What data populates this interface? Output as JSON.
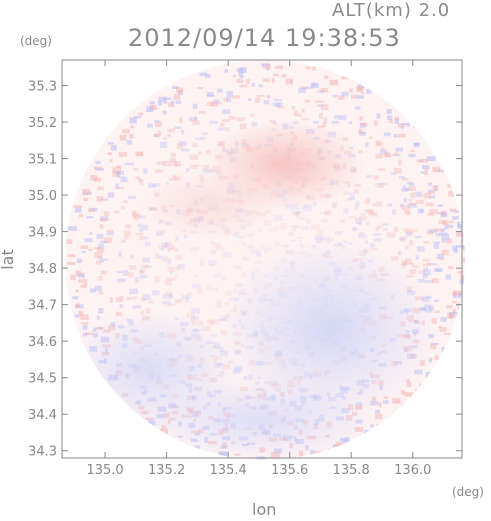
{
  "header": {
    "altitude": "ALT(km) 2.0",
    "timestamp": "2012/09/14 19:38:53"
  },
  "axes": {
    "y_unit": "(deg)",
    "x_unit": "(deg)",
    "y_label": "lat",
    "x_label": "lon",
    "x_ticks": [
      "135.0",
      "135.2",
      "135.4",
      "135.6",
      "135.8",
      "136.0"
    ],
    "y_ticks": [
      "35.3",
      "35.2",
      "35.1",
      "35.0",
      "34.9",
      "34.8",
      "34.7",
      "34.6",
      "34.5",
      "34.4",
      "34.3"
    ]
  },
  "map": {
    "xlim": [
      134.86,
      136.16
    ],
    "ylim": [
      34.28,
      35.37
    ],
    "center": [
      135.52,
      34.82
    ],
    "colors": {
      "frame": "#888888",
      "positive": "#f4b6b6",
      "negative": "#b9bdf2",
      "neutral": "#ffffff"
    }
  }
}
